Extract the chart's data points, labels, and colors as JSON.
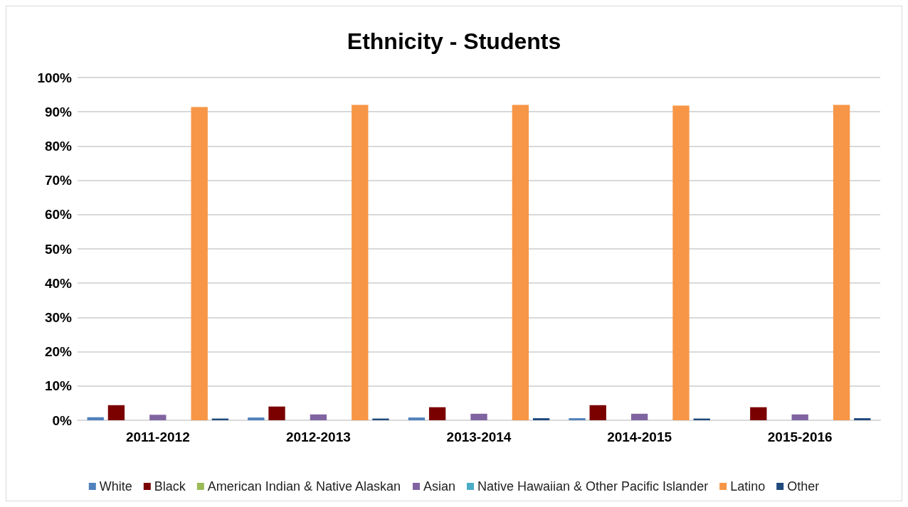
{
  "chart_data": {
    "type": "bar",
    "title": "Ethnicity - Students",
    "categories": [
      "2011-2012",
      "2012-2013",
      "2013-2014",
      "2014-2015",
      "2015-2016"
    ],
    "series": [
      {
        "name": "White",
        "color": "#4f81bd",
        "values": [
          0.9,
          0.8,
          0.8,
          0.6,
          0
        ]
      },
      {
        "name": "Black",
        "color": "#7b0000",
        "values": [
          4.4,
          4.0,
          3.8,
          4.4,
          3.8
        ]
      },
      {
        "name": "American Indian & Native Alaskan",
        "color": "#9bbb59",
        "values": [
          0,
          0,
          0,
          0,
          0
        ]
      },
      {
        "name": "Asian",
        "color": "#8064a2",
        "values": [
          1.6,
          1.7,
          1.9,
          1.9,
          1.7
        ]
      },
      {
        "name": "Native Hawaiian & Other Pacific Islander",
        "color": "#4bacc6",
        "values": [
          null,
          null,
          null,
          null,
          null
        ]
      },
      {
        "name": "Latino",
        "color": "#f79646",
        "values": [
          91.4,
          92.0,
          92.0,
          91.8,
          92.0
        ]
      },
      {
        "name": "Other",
        "color": "#1f497d",
        "values": [
          0.5,
          0.5,
          0.6,
          0.5,
          0.6
        ]
      }
    ],
    "ylim": [
      0,
      100
    ],
    "yticks": [
      {
        "value": 0,
        "label": "0%"
      },
      {
        "value": 10,
        "label": "10%"
      },
      {
        "value": 20,
        "label": "20%"
      },
      {
        "value": 30,
        "label": "30%"
      },
      {
        "value": 40,
        "label": "40%"
      },
      {
        "value": 50,
        "label": "50%"
      },
      {
        "value": 60,
        "label": "60%"
      },
      {
        "value": 70,
        "label": "70%"
      },
      {
        "value": 80,
        "label": "80%"
      },
      {
        "value": 90,
        "label": "90%"
      },
      {
        "value": 100,
        "label": "100%"
      }
    ],
    "grid": "y",
    "legend": "bottom"
  }
}
